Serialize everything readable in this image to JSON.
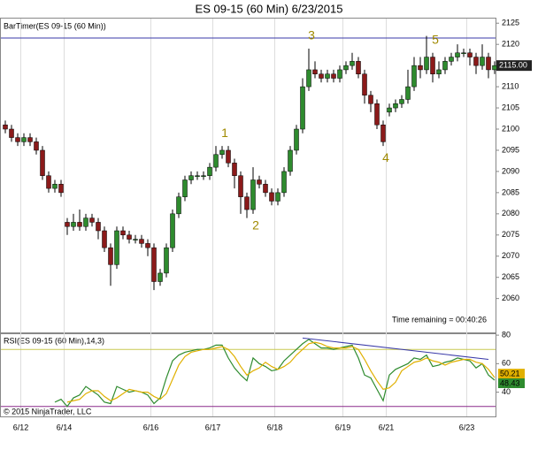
{
  "chart_data": [
    {
      "type": "candlestick",
      "title": "ES 09-15 (60 Min)  6/23/2015",
      "label": "BarTimer(ES 09-15 (60 Min))",
      "note": "Time remaining = 00:40:26",
      "up_color": "#2e8b2e",
      "down_color": "#8b1a1a",
      "open": [
        2101,
        2100,
        2098,
        2097,
        2098,
        2097,
        2095,
        2089,
        2086,
        2087,
        2078,
        2077,
        2078,
        2077,
        2079,
        2078,
        2076,
        2072,
        2068,
        2076,
        2075,
        2074,
        2074,
        2073,
        2072,
        2064,
        2066,
        2072,
        2080,
        2084,
        2088,
        2089,
        2089,
        2089,
        2091,
        2094,
        2095,
        2092,
        2089,
        2084,
        2081,
        2088,
        2087,
        2085,
        2083,
        2085,
        2090,
        2095,
        2100,
        2110,
        2114,
        2113,
        2112,
        2113,
        2112,
        2114,
        2115,
        2116,
        2113,
        2108,
        2106,
        2101,
        2104,
        2105,
        2106,
        2107,
        2110,
        2115,
        2114,
        2117,
        2113,
        2114,
        2116,
        2117,
        2118,
        2118,
        2117,
        2115,
        2117,
        2114
      ],
      "high": [
        2102,
        2101,
        2099,
        2099,
        2099,
        2098,
        2096,
        2090,
        2088,
        2088,
        2079,
        2080,
        2081,
        2080,
        2080,
        2079,
        2077,
        2073,
        2077,
        2077,
        2076,
        2075,
        2075,
        2074,
        2073,
        2067,
        2073,
        2081,
        2085,
        2089,
        2090,
        2090,
        2090,
        2092,
        2096,
        2096,
        2096,
        2093,
        2090,
        2085,
        2091,
        2089,
        2088,
        2086,
        2086,
        2091,
        2096,
        2101,
        2112,
        2119,
        2116,
        2114,
        2114,
        2114,
        2115,
        2116,
        2118,
        2117,
        2114,
        2109,
        2107,
        2102,
        2106,
        2107,
        2108,
        2114,
        2117,
        2117,
        2122,
        2118,
        2116,
        2117,
        2118,
        2120,
        2119,
        2119,
        2118,
        2120,
        2118,
        2116
      ],
      "low": [
        2099,
        2097,
        2096,
        2096,
        2096,
        2094,
        2088,
        2085,
        2085,
        2084,
        2075,
        2076,
        2076,
        2076,
        2077,
        2074,
        2071,
        2063,
        2067,
        2074,
        2073,
        2073,
        2072,
        2070,
        2062,
        2063,
        2065,
        2071,
        2079,
        2083,
        2087,
        2088,
        2088,
        2088,
        2090,
        2093,
        2091,
        2086,
        2080,
        2079,
        2080,
        2086,
        2084,
        2082,
        2082,
        2084,
        2089,
        2094,
        2099,
        2109,
        2112,
        2111,
        2111,
        2111,
        2111,
        2113,
        2114,
        2112,
        2106,
        2104,
        2100,
        2096,
        2103,
        2104,
        2105,
        2106,
        2109,
        2112,
        2113,
        2111,
        2112,
        2113,
        2115,
        2116,
        2117,
        2115,
        2113,
        2114,
        2112,
        2113
      ],
      "close": [
        2100,
        2098,
        2097,
        2098,
        2097,
        2095,
        2089,
        2086,
        2087,
        2085,
        2077,
        2078,
        2077,
        2079,
        2078,
        2076,
        2072,
        2068,
        2076,
        2075,
        2074,
        2074,
        2073,
        2072,
        2064,
        2066,
        2072,
        2080,
        2084,
        2088,
        2089,
        2089,
        2089,
        2091,
        2094,
        2095,
        2092,
        2089,
        2084,
        2081,
        2088,
        2087,
        2085,
        2083,
        2085,
        2090,
        2095,
        2100,
        2110,
        2114,
        2113,
        2112,
        2113,
        2112,
        2114,
        2115,
        2116,
        2113,
        2108,
        2106,
        2101,
        2097,
        2105,
        2106,
        2107,
        2110,
        2115,
        2114,
        2117,
        2113,
        2114,
        2116,
        2117,
        2118,
        2118,
        2117,
        2115,
        2117,
        2114,
        2115
      ],
      "last_label": "2115.00",
      "ylim": [
        2052,
        2126.3
      ],
      "yticks": [
        2125,
        2120,
        2115,
        2110,
        2105,
        2100,
        2095,
        2090,
        2085,
        2080,
        2075,
        2070,
        2065,
        2060
      ],
      "hline": {
        "value": 2121.5,
        "color": "#3a3aa8"
      },
      "annotations": [
        {
          "text": "1",
          "index": 35,
          "position": "above"
        },
        {
          "text": "2",
          "index": 40,
          "position": "below"
        },
        {
          "text": "3",
          "index": 49,
          "position": "above"
        },
        {
          "text": "4",
          "index": 61,
          "position": "below"
        },
        {
          "text": "5",
          "index": 69,
          "position": "above"
        }
      ],
      "xlabels": [
        {
          "label": "6/12",
          "index": 3
        },
        {
          "label": "6/14",
          "index": 10
        },
        {
          "label": "6/16",
          "index": 24
        },
        {
          "label": "6/17",
          "index": 34
        },
        {
          "label": "6/18",
          "index": 44
        },
        {
          "label": "6/19",
          "index": 55
        },
        {
          "label": "6/21",
          "index": 62
        },
        {
          "label": "6/23",
          "index": 75
        }
      ]
    },
    {
      "type": "line",
      "label": "RSI(ES 09-15 (60 Min),14,3)",
      "copyright": "© 2015 NinjaTrader, LLC",
      "series": [
        {
          "color": "#2e8b2e",
          "values": [
            null,
            null,
            null,
            null,
            null,
            null,
            null,
            null,
            33,
            35,
            30,
            36,
            38,
            44,
            41,
            38,
            33,
            32,
            44,
            42,
            40,
            41,
            40,
            38,
            32,
            36,
            50,
            62,
            66,
            68,
            69,
            70,
            70,
            71,
            73,
            73,
            64,
            57,
            52,
            48,
            64,
            60,
            58,
            55,
            56,
            62,
            66,
            70,
            74,
            77,
            74,
            71,
            71,
            70,
            71,
            72,
            73,
            64,
            52,
            50,
            42,
            34,
            52,
            56,
            58,
            60,
            64,
            63,
            66,
            58,
            59,
            61,
            62,
            64,
            63,
            62,
            57,
            60,
            52,
            48.43
          ]
        },
        {
          "color": "#e0b000",
          "values": [
            null,
            null,
            null,
            null,
            null,
            null,
            null,
            null,
            null,
            null,
            33,
            34,
            35,
            39,
            41,
            41,
            37,
            34,
            36,
            39,
            42,
            41,
            40,
            40,
            37,
            35,
            39,
            49,
            59,
            65,
            68,
            69,
            70,
            70,
            71,
            72,
            70,
            65,
            58,
            52,
            55,
            57,
            61,
            58,
            56,
            58,
            61,
            66,
            70,
            74,
            75,
            74,
            72,
            71,
            71,
            71,
            72,
            70,
            63,
            55,
            48,
            42,
            43,
            47,
            55,
            58,
            61,
            62,
            64,
            62,
            61,
            59,
            61,
            62,
            63,
            63,
            61,
            60,
            56,
            50.21
          ]
        }
      ],
      "ylim": [
        23,
        81.3
      ],
      "yticks": [
        80,
        60,
        40
      ],
      "levels": [
        {
          "value": 70,
          "color": "#c8c850"
        },
        {
          "value": 30,
          "color": "#8a2a8a"
        }
      ],
      "trendline": {
        "x": [
          48,
          78
        ],
        "y": [
          78,
          63
        ],
        "color": "#3a3aa8"
      }
    }
  ]
}
